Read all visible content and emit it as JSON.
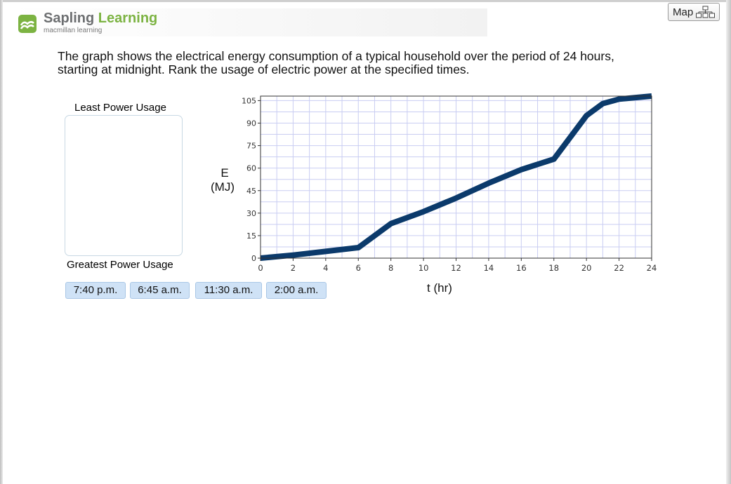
{
  "header": {
    "brand_word1": "Sapling",
    "brand_word2": "Learning",
    "brand_sub": "macmillan learning",
    "map_label": "Map"
  },
  "question": {
    "line1": "The graph shows the electrical energy consumption of a typical household over the period of 24 hours,",
    "line2": "starting at midnight.  Rank the usage of electric power at the specified times."
  },
  "ranking": {
    "least_label": "Least Power Usage",
    "greatest_label": "Greatest Power Usage",
    "choices": [
      "7:40 p.m.",
      "6:45 a.m.",
      "11:30 a.m.",
      "2:00 a.m."
    ]
  },
  "colors": {
    "curve": "#0b3a6b",
    "grid": "#c9cdf2",
    "brand_green": "#7cb342",
    "chip_bg": "#cfe2f6"
  },
  "chart_data": {
    "type": "line",
    "xlabel": "t (hr)",
    "ylabel_line1": "E",
    "ylabel_line2": "(MJ)",
    "xlim": [
      0,
      24
    ],
    "ylim": [
      0,
      108
    ],
    "x_ticks": [
      0,
      2,
      4,
      6,
      8,
      10,
      12,
      14,
      16,
      18,
      20,
      22,
      24
    ],
    "y_ticks": [
      0,
      15,
      30,
      45,
      60,
      75,
      90,
      105
    ],
    "grid": true,
    "series": [
      {
        "x": [
          0,
          2,
          4,
          6,
          8,
          10,
          12,
          14,
          16,
          18,
          20,
          21,
          22,
          24
        ],
        "y": [
          0,
          2,
          4.5,
          7,
          23,
          31,
          40,
          50,
          59,
          66,
          95,
          103,
          106,
          108
        ]
      }
    ]
  }
}
